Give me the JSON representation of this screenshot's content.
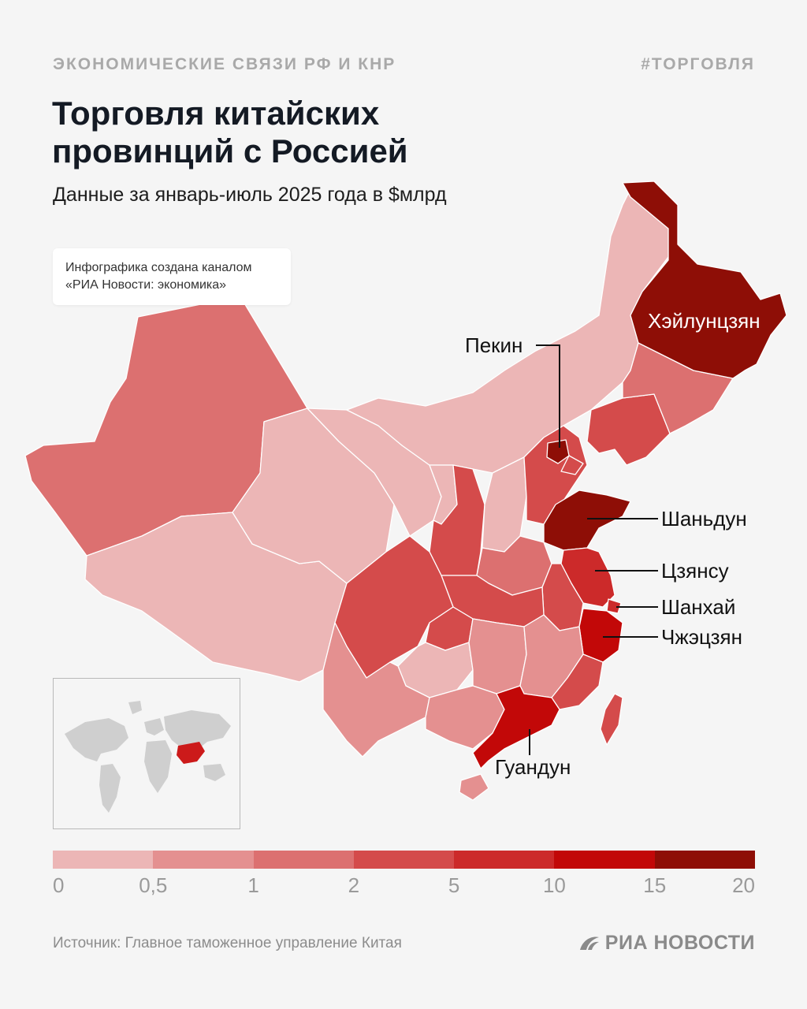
{
  "header": {
    "kicker": "ЭКОНОМИЧЕСКИЕ СВЯЗИ РФ И КНР",
    "hashtag": "#ТОРГОВЛЯ",
    "title": "Торговля китайских провинций с Россией",
    "subtitle": "Данные за январь-июль 2025 года в $млрд"
  },
  "credit": {
    "line1": "Инфографика создана каналом",
    "line2": "«РИА Новости: экономика»"
  },
  "map": {
    "labels": {
      "heilongjiang": "Хэйлунцзян",
      "beijing": "Пекин",
      "shandong": "Шаньдун",
      "jiangsu": "Цзянсу",
      "shanghai": "Шанхай",
      "zhejiang": "Чжэцзян",
      "guangdong": "Гуандун"
    },
    "colors": {
      "bin_0": "#ecb6b6",
      "bin_1": "#e49090",
      "bin_2": "#dc7070",
      "bin_3": "#d44b4b",
      "bin_4": "#cc2a2a",
      "bin_5": "#c20808",
      "bin_6": "#8e0e06"
    }
  },
  "legend": {
    "ticks": [
      "0",
      "0,5",
      "1",
      "2",
      "5",
      "10",
      "15",
      "20"
    ],
    "colors": [
      "#ecb6b6",
      "#e49090",
      "#dc7070",
      "#d44b4b",
      "#cc2a2a",
      "#c20808",
      "#8e0e06"
    ]
  },
  "footer": {
    "source": "Источник: Главное таможенное управление Китая",
    "brand": "РИА НОВОСТИ"
  }
}
